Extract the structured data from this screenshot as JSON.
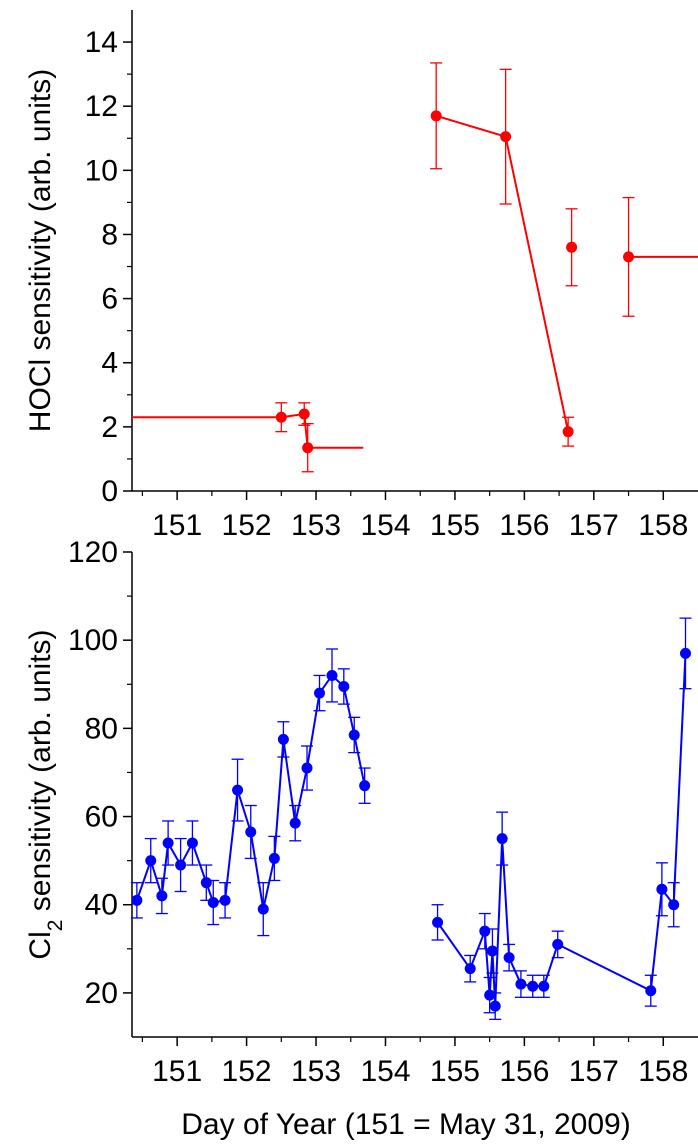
{
  "chart_data": [
    {
      "type": "line",
      "ylabel": "HOCl sensitivity (arb. units)",
      "xlabel": "",
      "xlim": [
        150.35,
        158.5
      ],
      "ylim": [
        0,
        15
      ],
      "xticks": [
        151,
        152,
        153,
        154,
        155,
        156,
        157,
        158
      ],
      "xtick_labels": [
        "151",
        "152",
        "153",
        "154",
        "155",
        "156",
        "157",
        "158"
      ],
      "yticks": [
        0,
        2,
        4,
        6,
        8,
        10,
        12,
        14
      ],
      "ytick_labels": [
        "0",
        "2",
        "4",
        "6",
        "8",
        "10",
        "12",
        "14"
      ],
      "grid": false,
      "color": "#ff0000",
      "series": [
        {
          "x": [
            152.5,
            152.83,
            152.88,
            154.73,
            155.73,
            156.63,
            156.68,
            157.5
          ],
          "y": [
            2.3,
            2.4,
            1.35,
            11.7,
            11.05,
            1.85,
            7.6,
            7.3
          ],
          "yerr": [
            0.45,
            0.35,
            0.75,
            1.65,
            2.1,
            0.45,
            1.2,
            1.85
          ],
          "xerr_lo": [
            2.15,
            0,
            0,
            0,
            0,
            0,
            0,
            0
          ],
          "xerr_hi": [
            0,
            0,
            0.8,
            0,
            0,
            0,
            0,
            1.0
          ],
          "segments": [
            [
              0,
              1,
              2
            ],
            [
              3,
              4,
              5
            ]
          ],
          "points_only": [
            6,
            7
          ]
        }
      ]
    },
    {
      "type": "line",
      "ylabel": "Cl2 sensitivity (arb. units)",
      "ylabel_main": "Cl",
      "ylabel_sub": "2",
      "ylabel_rest": " sensitivity (arb. units)",
      "xlabel": "Day of Year (151 = May 31, 2009)",
      "xlim": [
        150.35,
        158.5
      ],
      "ylim": [
        10,
        120
      ],
      "xticks": [
        151,
        152,
        153,
        154,
        155,
        156,
        157,
        158
      ],
      "xtick_labels": [
        "151",
        "152",
        "153",
        "154",
        "155",
        "156",
        "157",
        "158"
      ],
      "yticks": [
        20,
        40,
        60,
        80,
        100,
        120
      ],
      "ytick_labels": [
        "20",
        "40",
        "60",
        "80",
        "100",
        "120"
      ],
      "grid": false,
      "color": "#0000ff",
      "series": [
        {
          "x": [
            150.42,
            150.62,
            150.78,
            150.87,
            151.05,
            151.22,
            151.42,
            151.52,
            151.69,
            151.87,
            152.06,
            152.24,
            152.4,
            152.53,
            152.7,
            152.87,
            153.05,
            153.23,
            153.4,
            153.55,
            153.7
          ],
          "y": [
            41,
            50,
            42,
            54,
            49,
            54,
            45,
            40.5,
            41,
            66,
            56.5,
            39,
            50.5,
            77.5,
            58.5,
            71,
            88,
            92,
            89.5,
            78.5,
            67
          ],
          "yerr": [
            4,
            5,
            4,
            5,
            6,
            5,
            4,
            5,
            4,
            7,
            6,
            6,
            5,
            4,
            4,
            5,
            4,
            6,
            4,
            4,
            4
          ],
          "segments": [
            [
              0,
              1,
              2,
              3,
              4,
              5,
              6,
              7,
              8,
              9,
              10,
              11,
              12,
              13,
              14,
              15,
              16,
              17,
              18,
              19,
              20
            ]
          ]
        },
        {
          "x": [
            154.75,
            155.22,
            155.43,
            155.5,
            155.54,
            155.58,
            155.68,
            155.78,
            155.95,
            156.12,
            156.28,
            156.48,
            157.82,
            157.98,
            158.15,
            158.32
          ],
          "y": [
            36,
            25.5,
            34,
            19.5,
            29.5,
            17,
            55,
            28,
            22,
            21.5,
            21.5,
            31,
            20.5,
            43.5,
            40,
            97
          ],
          "yerr": [
            4,
            3,
            4,
            4,
            5,
            3,
            6,
            3,
            3,
            2.5,
            2.5,
            3,
            3.5,
            6,
            5,
            8
          ],
          "segments": [
            [
              0,
              1,
              2,
              3,
              4,
              5,
              6,
              7,
              8,
              9,
              10,
              11,
              12,
              13,
              14,
              15
            ]
          ]
        }
      ]
    }
  ]
}
